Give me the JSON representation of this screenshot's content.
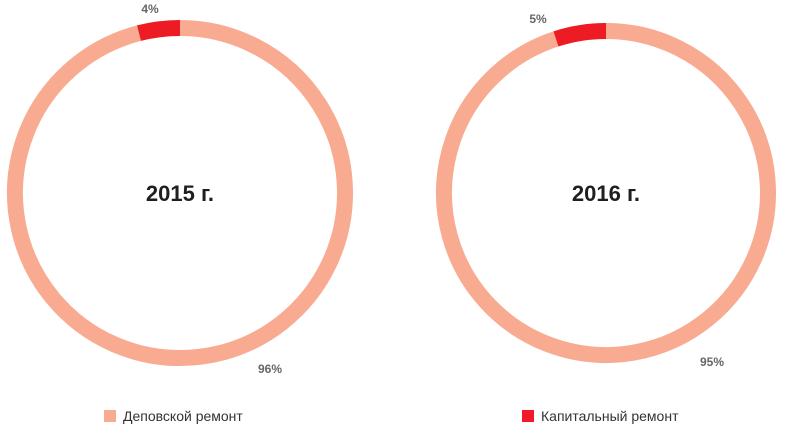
{
  "chart_data": {
    "type": "pie",
    "variant": "donut",
    "charts": [
      {
        "center_label": "2015 г.",
        "slices": [
          {
            "label": "Деповской ремонт",
            "value": 96,
            "display": "96%"
          },
          {
            "label": "Капитальный ремонт",
            "value": 4,
            "display": "4%"
          }
        ]
      },
      {
        "center_label": "2016 г.",
        "slices": [
          {
            "label": "Деповской ремонт",
            "value": 95,
            "display": "95%"
          },
          {
            "label": "Капитальный ремонт",
            "value": 5,
            "display": "5%"
          }
        ]
      }
    ],
    "legend": [
      {
        "label": "Деповской ремонт",
        "color": "#f8ab91"
      },
      {
        "label": "Капитальный ремонт",
        "color": "#ed1c24"
      }
    ],
    "legend_position": "bottom"
  }
}
